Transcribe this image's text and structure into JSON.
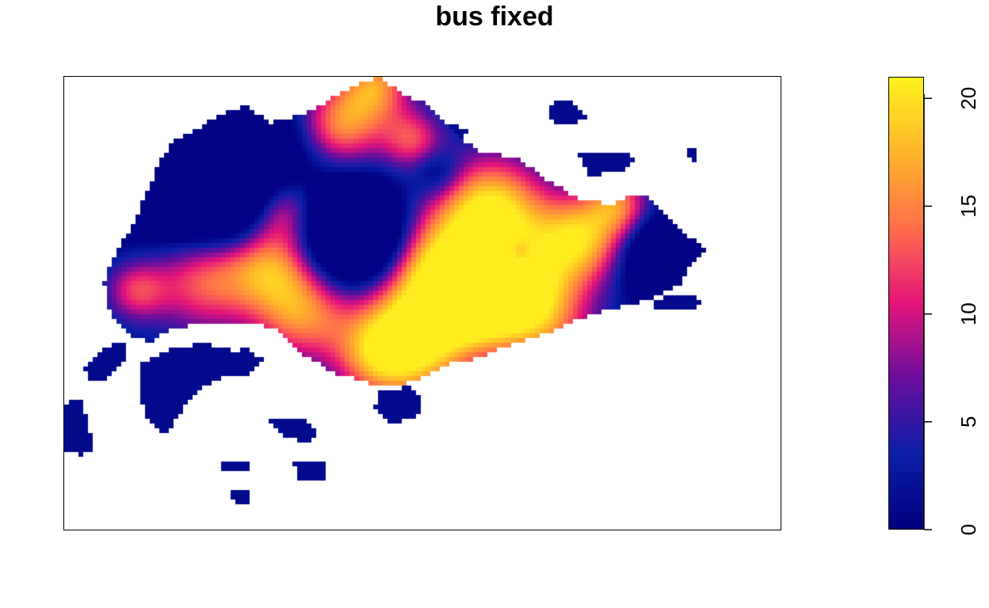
{
  "chart_data": {
    "type": "heatmap",
    "title": "bus fixed",
    "xlabel": "",
    "ylabel": "",
    "axes_shown": false,
    "legend": {
      "type": "colorbar",
      "placement": "right",
      "range": [
        0,
        21
      ],
      "ticks": [
        0,
        5,
        10,
        15,
        20
      ],
      "tick_labels": [
        "0",
        "5",
        "10",
        "15",
        "20"
      ],
      "colors": [
        "#00007F",
        "#0B1EA6",
        "#6A0E9E",
        "#E5147A",
        "#FF6F4A",
        "#FFB52A",
        "#FFF21E"
      ]
    },
    "hotspots": [
      {
        "region": "north-centre",
        "value": 16
      },
      {
        "region": "centre-east",
        "value": 20
      },
      {
        "region": "west-centre",
        "value": 18
      },
      {
        "region": "east",
        "value": 17
      },
      {
        "region": "south-centre",
        "value": 18
      },
      {
        "region": "south",
        "value": 17
      }
    ],
    "background_value": 0
  }
}
